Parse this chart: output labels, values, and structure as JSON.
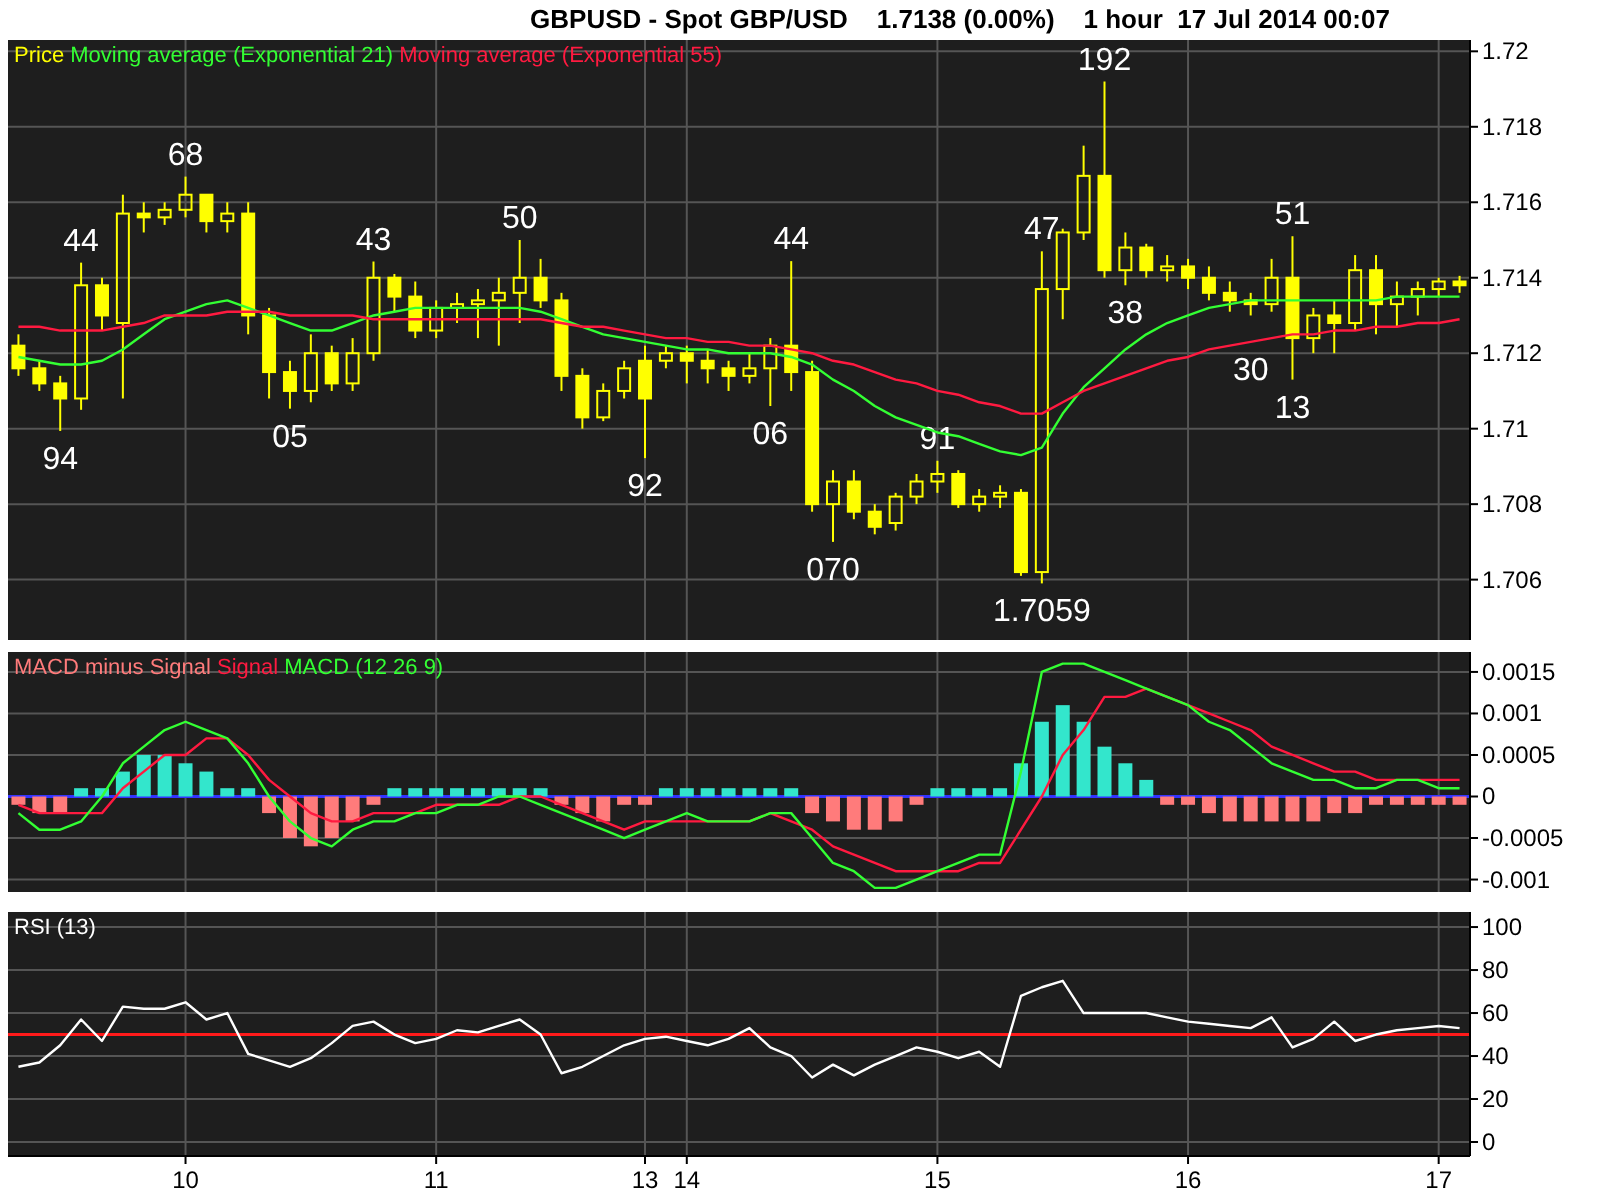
{
  "chart_data": [
    {
      "type": "candlestick",
      "title": "GBPUSD - Spot GBP/USD    1.7138 (0.00%)    1 hour  17 Jul 2014 00:07",
      "legend": "top left",
      "grid": true,
      "tick_labels": "y",
      "categories": [
        null,
        null,
        null,
        null,
        null,
        null,
        null,
        null,
        "10",
        null,
        null,
        null,
        null,
        null,
        null,
        null,
        null,
        null,
        null,
        null,
        "11",
        null,
        null,
        null,
        null,
        null,
        null,
        null,
        null,
        null,
        "13",
        null,
        "14",
        null,
        null,
        null,
        null,
        null,
        null,
        null,
        null,
        null,
        null,
        null,
        "15",
        null,
        null,
        null,
        null,
        null,
        null,
        null,
        null,
        null,
        null,
        null,
        "16",
        null,
        null,
        null,
        null,
        null,
        null,
        null,
        null,
        null,
        null,
        null,
        "17",
        null
      ],
      "ylim": [
        1.7044,
        1.7203
      ],
      "yticks": [
        1.706,
        1.708,
        1.71,
        1.712,
        1.714,
        1.716,
        1.718,
        1.72
      ],
      "series": [
        {
          "name": "Price",
          "color": "#ffff00",
          "ohlc": [
            [
              1.7122,
              1.7125,
              1.7114,
              1.7116
            ],
            [
              1.7116,
              1.7118,
              1.711,
              1.7112
            ],
            [
              1.7112,
              1.7114,
              1.70994,
              1.7108
            ],
            [
              1.7108,
              1.7144,
              1.7105,
              1.7138
            ],
            [
              1.7138,
              1.714,
              1.7126,
              1.713
            ],
            [
              1.7128,
              1.7162,
              1.7108,
              1.7157
            ],
            [
              1.7157,
              1.716,
              1.7152,
              1.7156
            ],
            [
              1.7156,
              1.716,
              1.7154,
              1.7158
            ],
            [
              1.7158,
              1.71668,
              1.7156,
              1.7162
            ],
            [
              1.7162,
              1.7162,
              1.7152,
              1.7155
            ],
            [
              1.7155,
              1.716,
              1.7152,
              1.7157
            ],
            [
              1.7157,
              1.716,
              1.7125,
              1.713
            ],
            [
              1.713,
              1.7132,
              1.7108,
              1.7115
            ],
            [
              1.7115,
              1.7118,
              1.71053,
              1.711
            ],
            [
              1.711,
              1.7125,
              1.7107,
              1.712
            ],
            [
              1.712,
              1.7122,
              1.711,
              1.7112
            ],
            [
              1.7112,
              1.7124,
              1.711,
              1.712
            ],
            [
              1.712,
              1.71443,
              1.7118,
              1.714
            ],
            [
              1.714,
              1.7141,
              1.7131,
              1.7135
            ],
            [
              1.7135,
              1.7139,
              1.7124,
              1.7126
            ],
            [
              1.7126,
              1.7134,
              1.7124,
              1.7132
            ],
            [
              1.7132,
              1.7136,
              1.7128,
              1.7133
            ],
            [
              1.7133,
              1.7137,
              1.7124,
              1.7134
            ],
            [
              1.7134,
              1.714,
              1.7122,
              1.7136
            ],
            [
              1.7136,
              1.715,
              1.7128,
              1.714
            ],
            [
              1.714,
              1.7145,
              1.7132,
              1.7134
            ],
            [
              1.7134,
              1.7136,
              1.711,
              1.7114
            ],
            [
              1.7114,
              1.7116,
              1.71,
              1.7103
            ],
            [
              1.7103,
              1.7112,
              1.7102,
              1.711
            ],
            [
              1.711,
              1.7118,
              1.7108,
              1.7116
            ],
            [
              1.7118,
              1.7122,
              1.70922,
              1.7108
            ],
            [
              1.7118,
              1.7122,
              1.7116,
              1.712
            ],
            [
              1.712,
              1.7122,
              1.7112,
              1.7118
            ],
            [
              1.7118,
              1.7121,
              1.7112,
              1.7116
            ],
            [
              1.7116,
              1.7118,
              1.711,
              1.7114
            ],
            [
              1.7114,
              1.712,
              1.7112,
              1.7116
            ],
            [
              1.7116,
              1.7124,
              1.7106,
              1.7122
            ],
            [
              1.7122,
              1.71444,
              1.711,
              1.7115
            ],
            [
              1.7115,
              1.7118,
              1.7078,
              1.708
            ],
            [
              1.708,
              1.7089,
              1.707,
              1.7086
            ],
            [
              1.7086,
              1.7089,
              1.7076,
              1.7078
            ],
            [
              1.7078,
              1.708,
              1.7072,
              1.7074
            ],
            [
              1.7075,
              1.7083,
              1.7073,
              1.7082
            ],
            [
              1.7082,
              1.7088,
              1.708,
              1.7086
            ],
            [
              1.7086,
              1.70915,
              1.7083,
              1.7088
            ],
            [
              1.7088,
              1.7089,
              1.7079,
              1.708
            ],
            [
              1.708,
              1.7084,
              1.7078,
              1.7082
            ],
            [
              1.7082,
              1.7085,
              1.7079,
              1.7083
            ],
            [
              1.7083,
              1.7084,
              1.7061,
              1.7062
            ],
            [
              1.7062,
              1.7147,
              1.7059,
              1.7137
            ],
            [
              1.7137,
              1.7153,
              1.7129,
              1.7152
            ],
            [
              1.7152,
              1.7175,
              1.715,
              1.7167
            ],
            [
              1.7167,
              1.7192,
              1.714,
              1.7142
            ],
            [
              1.7142,
              1.7152,
              1.7138,
              1.7148
            ],
            [
              1.7148,
              1.7149,
              1.714,
              1.7142
            ],
            [
              1.7142,
              1.7146,
              1.7139,
              1.7143
            ],
            [
              1.7143,
              1.7145,
              1.7137,
              1.714
            ],
            [
              1.714,
              1.7143,
              1.7134,
              1.7136
            ],
            [
              1.7136,
              1.7139,
              1.7131,
              1.7134
            ],
            [
              1.7134,
              1.7136,
              1.713,
              1.7133
            ],
            [
              1.7133,
              1.7145,
              1.7131,
              1.714
            ],
            [
              1.714,
              1.7151,
              1.7113,
              1.7124
            ],
            [
              1.7124,
              1.7132,
              1.712,
              1.713
            ],
            [
              1.713,
              1.7134,
              1.712,
              1.7128
            ],
            [
              1.7128,
              1.7146,
              1.7126,
              1.7142
            ],
            [
              1.7142,
              1.7146,
              1.7125,
              1.7133
            ],
            [
              1.7133,
              1.7139,
              1.7127,
              1.7135
            ],
            [
              1.7135,
              1.7139,
              1.713,
              1.7137
            ],
            [
              1.7137,
              1.714,
              1.7135,
              1.7139
            ],
            [
              1.7139,
              1.71405,
              1.7136,
              1.7138
            ]
          ]
        },
        {
          "name": "Moving average (Exponential 21)",
          "type": "line",
          "color": "#33ff33",
          "values": [
            1.7119,
            1.7118,
            1.7117,
            1.7117,
            1.7118,
            1.7121,
            1.7125,
            1.7129,
            1.7131,
            1.7133,
            1.7134,
            1.7132,
            1.713,
            1.7128,
            1.7126,
            1.7126,
            1.7128,
            1.713,
            1.7131,
            1.7132,
            1.7132,
            1.7132,
            1.7132,
            1.7132,
            1.7132,
            1.7131,
            1.7129,
            1.7127,
            1.7125,
            1.7124,
            1.7123,
            1.7122,
            1.7121,
            1.7121,
            1.712,
            1.712,
            1.712,
            1.7119,
            1.7117,
            1.7113,
            1.711,
            1.7106,
            1.7103,
            1.7101,
            1.7099,
            1.7098,
            1.7096,
            1.7094,
            1.7093,
            1.7095,
            1.7104,
            1.7111,
            1.7116,
            1.7121,
            1.7125,
            1.7128,
            1.713,
            1.7132,
            1.7133,
            1.7134,
            1.7134,
            1.7134,
            1.7134,
            1.7134,
            1.7134,
            1.7134,
            1.7135,
            1.7135,
            1.7135,
            1.7135
          ]
        },
        {
          "name": "Moving average (Exponential 55)",
          "type": "line",
          "color": "#ff1a40",
          "values": [
            1.7127,
            1.7127,
            1.7126,
            1.7126,
            1.7126,
            1.7127,
            1.7128,
            1.713,
            1.713,
            1.713,
            1.7131,
            1.7131,
            1.7131,
            1.713,
            1.713,
            1.713,
            1.713,
            1.7129,
            1.7129,
            1.7129,
            1.7129,
            1.7129,
            1.7129,
            1.7129,
            1.7129,
            1.7129,
            1.7128,
            1.7127,
            1.7127,
            1.7126,
            1.7125,
            1.7124,
            1.7124,
            1.7123,
            1.7123,
            1.7122,
            1.7122,
            1.7121,
            1.712,
            1.7118,
            1.7117,
            1.7115,
            1.7113,
            1.7112,
            1.711,
            1.7109,
            1.7107,
            1.7106,
            1.7104,
            1.7104,
            1.7107,
            1.711,
            1.7112,
            1.7114,
            1.7116,
            1.7118,
            1.7119,
            1.7121,
            1.7122,
            1.7123,
            1.7124,
            1.7125,
            1.7125,
            1.7126,
            1.7126,
            1.7127,
            1.7127,
            1.7128,
            1.7128,
            1.7129
          ]
        }
      ],
      "annotations": [
        {
          "text": "94",
          "y": 1.70994
        },
        {
          "text": "44",
          "y": 1.7144
        },
        {
          "text": "68",
          "y": 1.71668
        },
        {
          "text": "05",
          "y": 1.71053
        },
        {
          "text": "43",
          "y": 1.71443
        },
        {
          "text": "50",
          "y": 1.715
        },
        {
          "text": "92",
          "y": 1.70922
        },
        {
          "text": "06",
          "y": 1.7106
        },
        {
          "text": "44",
          "y": 1.71444
        },
        {
          "text": "070",
          "y": 1.707
        },
        {
          "text": "91",
          "y": 1.70915
        },
        {
          "text": "1.7059",
          "y": 1.7059
        },
        {
          "text": "47",
          "y": 1.7147
        },
        {
          "text": "192",
          "y": 1.7192
        },
        {
          "text": "38",
          "y": 1.7138
        },
        {
          "text": "30",
          "y": 1.713
        },
        {
          "text": "51",
          "y": 1.7151
        },
        {
          "text": "13",
          "y": 1.7113
        }
      ]
    },
    {
      "type": "bar",
      "legend": "top left",
      "grid": true,
      "tick_labels": "y",
      "categories": [
        null,
        null,
        null,
        null,
        null,
        null,
        null,
        null,
        "10",
        null,
        null,
        null,
        null,
        null,
        null,
        null,
        null,
        null,
        null,
        null,
        "11",
        null,
        null,
        null,
        null,
        null,
        null,
        null,
        null,
        null,
        "13",
        null,
        "14",
        null,
        null,
        null,
        null,
        null,
        null,
        null,
        null,
        null,
        null,
        null,
        "15",
        null,
        null,
        null,
        null,
        null,
        null,
        null,
        null,
        null,
        null,
        null,
        "16",
        null,
        null,
        null,
        null,
        null,
        null,
        null,
        null,
        null,
        null,
        null,
        "17",
        null
      ],
      "ylim": [
        -0.00115,
        0.00174
      ],
      "yticks": [
        -0.001,
        -0.0005,
        0,
        0.0005,
        0.001,
        0.0015
      ],
      "ref_lines": [
        {
          "axis": "y",
          "value": 0,
          "color": "#3333ff"
        }
      ],
      "series": [
        {
          "name": "MACD minus Signal",
          "color": "#ff7b7b",
          "values": [
            -0.0001,
            -0.0002,
            -0.0002,
            0.0001,
            0.0001,
            0.0003,
            0.0005,
            0.0005,
            0.0004,
            0.0003,
            0.0001,
            0.0001,
            -0.0002,
            -0.0005,
            -0.0006,
            -0.0005,
            -0.0003,
            -0.0001,
            0.0001,
            0.0001,
            0.0001,
            0.0001,
            0.0001,
            0.0001,
            0.0001,
            0.0001,
            -0.0001,
            -0.0002,
            -0.0003,
            -0.0001,
            -0.0001,
            0.0001,
            0.0001,
            0.0001,
            0.0001,
            0.0001,
            0.0001,
            0.0001,
            -0.0002,
            -0.0003,
            -0.0004,
            -0.0004,
            -0.0003,
            -0.0001,
            0.0001,
            0.0001,
            0.0001,
            0.0001,
            0.0004,
            0.0009,
            0.0011,
            0.0009,
            0.0006,
            0.0004,
            0.0002,
            -0.0001,
            -0.0001,
            -0.0002,
            -0.0003,
            -0.0003,
            -0.0003,
            -0.0003,
            -0.0003,
            -0.0002,
            -0.0002,
            -0.0001,
            -0.0001,
            -0.0001,
            -0.0001,
            -0.0001
          ],
          "colors": [
            "#ff7b7b",
            "#ff7b7b",
            "#ff7b7b",
            "#33e6cc",
            "#33e6cc",
            "#33e6cc",
            "#33e6cc",
            "#33e6cc",
            "#33e6cc",
            "#33e6cc",
            "#33e6cc",
            "#33e6cc",
            "#ff7b7b",
            "#ff7b7b",
            "#ff7b7b",
            "#ff7b7b",
            "#ff7b7b",
            "#ff7b7b",
            "#33e6cc",
            "#33e6cc",
            "#33e6cc",
            "#33e6cc",
            "#33e6cc",
            "#33e6cc",
            "#33e6cc",
            "#33e6cc",
            "#ff7b7b",
            "#ff7b7b",
            "#ff7b7b",
            "#ff7b7b",
            "#ff7b7b",
            "#33e6cc",
            "#33e6cc",
            "#33e6cc",
            "#33e6cc",
            "#33e6cc",
            "#33e6cc",
            "#33e6cc",
            "#ff7b7b",
            "#ff7b7b",
            "#ff7b7b",
            "#ff7b7b",
            "#ff7b7b",
            "#ff7b7b",
            "#33e6cc",
            "#33e6cc",
            "#33e6cc",
            "#33e6cc",
            "#33e6cc",
            "#33e6cc",
            "#33e6cc",
            "#33e6cc",
            "#33e6cc",
            "#33e6cc",
            "#33e6cc",
            "#ff7b7b",
            "#ff7b7b",
            "#ff7b7b",
            "#ff7b7b",
            "#ff7b7b",
            "#ff7b7b",
            "#ff7b7b",
            "#ff7b7b",
            "#ff7b7b",
            "#ff7b7b",
            "#ff7b7b",
            "#ff7b7b",
            "#ff7b7b",
            "#ff7b7b",
            "#ff7b7b"
          ]
        },
        {
          "name": "Signal",
          "type": "line",
          "color": "#ff1a40",
          "values": [
            -0.0001,
            -0.0002,
            -0.0002,
            -0.0002,
            -0.0002,
            0.0001,
            0.0003,
            0.0005,
            0.0005,
            0.0007,
            0.0007,
            0.0005,
            0.0002,
            0,
            -0.0002,
            -0.0003,
            -0.0003,
            -0.0002,
            -0.0002,
            -0.0002,
            -0.0001,
            -0.0001,
            -0.0001,
            -0.0001,
            0,
            0,
            -0.0001,
            -0.0002,
            -0.0003,
            -0.0004,
            -0.0003,
            -0.0003,
            -0.0003,
            -0.0003,
            -0.0003,
            -0.0003,
            -0.0002,
            -0.0003,
            -0.0004,
            -0.0006,
            -0.0007,
            -0.0008,
            -0.0009,
            -0.0009,
            -0.0009,
            -0.0009,
            -0.0008,
            -0.0008,
            -0.0004,
            0,
            0.0005,
            0.0008,
            0.0012,
            0.0012,
            0.0013,
            0.0012,
            0.0011,
            0.001,
            0.0009,
            0.0008,
            0.0006,
            0.0005,
            0.0004,
            0.0003,
            0.0003,
            0.0002,
            0.0002,
            0.0002,
            0.0002,
            0.0002
          ]
        },
        {
          "name": "MACD (12 26 9)",
          "type": "line",
          "color": "#33ff33",
          "values": [
            -0.0002,
            -0.0004,
            -0.0004,
            -0.0003,
            0,
            0.0004,
            0.0006,
            0.0008,
            0.0009,
            0.0008,
            0.0007,
            0.0004,
            0,
            -0.0003,
            -0.0005,
            -0.0006,
            -0.0004,
            -0.0003,
            -0.0003,
            -0.0002,
            -0.0002,
            -0.0001,
            -0.0001,
            0,
            0,
            -0.0001,
            -0.0002,
            -0.0003,
            -0.0004,
            -0.0005,
            -0.0004,
            -0.0003,
            -0.0002,
            -0.0003,
            -0.0003,
            -0.0003,
            -0.0002,
            -0.0002,
            -0.0005,
            -0.0008,
            -0.0009,
            -0.0011,
            -0.0011,
            -0.001,
            -0.0009,
            -0.0008,
            -0.0007,
            -0.0007,
            0.0003,
            0.0015,
            0.0016,
            0.0016,
            0.0015,
            0.0014,
            0.0013,
            0.0012,
            0.0011,
            0.0009,
            0.0008,
            0.0006,
            0.0004,
            0.0003,
            0.0002,
            0.0002,
            0.0001,
            0.0001,
            0.0002,
            0.0002,
            0.0001,
            0.0001
          ]
        }
      ]
    },
    {
      "type": "line",
      "legend": "top left",
      "grid": true,
      "categories": [
        null,
        null,
        null,
        null,
        null,
        null,
        null,
        null,
        "10",
        null,
        null,
        null,
        null,
        null,
        null,
        null,
        null,
        null,
        null,
        null,
        "11",
        null,
        null,
        null,
        null,
        null,
        null,
        null,
        null,
        null,
        "13",
        null,
        "14",
        null,
        null,
        null,
        null,
        null,
        null,
        null,
        null,
        null,
        null,
        null,
        "15",
        null,
        null,
        null,
        null,
        null,
        null,
        null,
        null,
        null,
        null,
        null,
        "16",
        null,
        null,
        null,
        null,
        null,
        null,
        null,
        null,
        null,
        null,
        null,
        "17",
        null
      ],
      "ylim": [
        -6.5,
        107
      ],
      "yticks": [
        0,
        20,
        40,
        60,
        80,
        100
      ],
      "ref_lines": [
        {
          "axis": "y",
          "value": 50,
          "color": "#ff1a1a"
        }
      ],
      "series": [
        {
          "name": "RSI (13)",
          "color": "#ffffff",
          "values": [
            35,
            37,
            45,
            57,
            47,
            63,
            62,
            62,
            65,
            57,
            60,
            41,
            38,
            35,
            39,
            46,
            54,
            56,
            50,
            46,
            48,
            52,
            51,
            54,
            57,
            50,
            32,
            35,
            40,
            45,
            48,
            49,
            47,
            45,
            48,
            53,
            44,
            40,
            30,
            36,
            31,
            36,
            40,
            44,
            42,
            39,
            42,
            35,
            68,
            72,
            75,
            60,
            60,
            60,
            60,
            58,
            56,
            55,
            54,
            53,
            58,
            44,
            48,
            56,
            47,
            50,
            52,
            53,
            54,
            53
          ]
        }
      ]
    }
  ]
}
